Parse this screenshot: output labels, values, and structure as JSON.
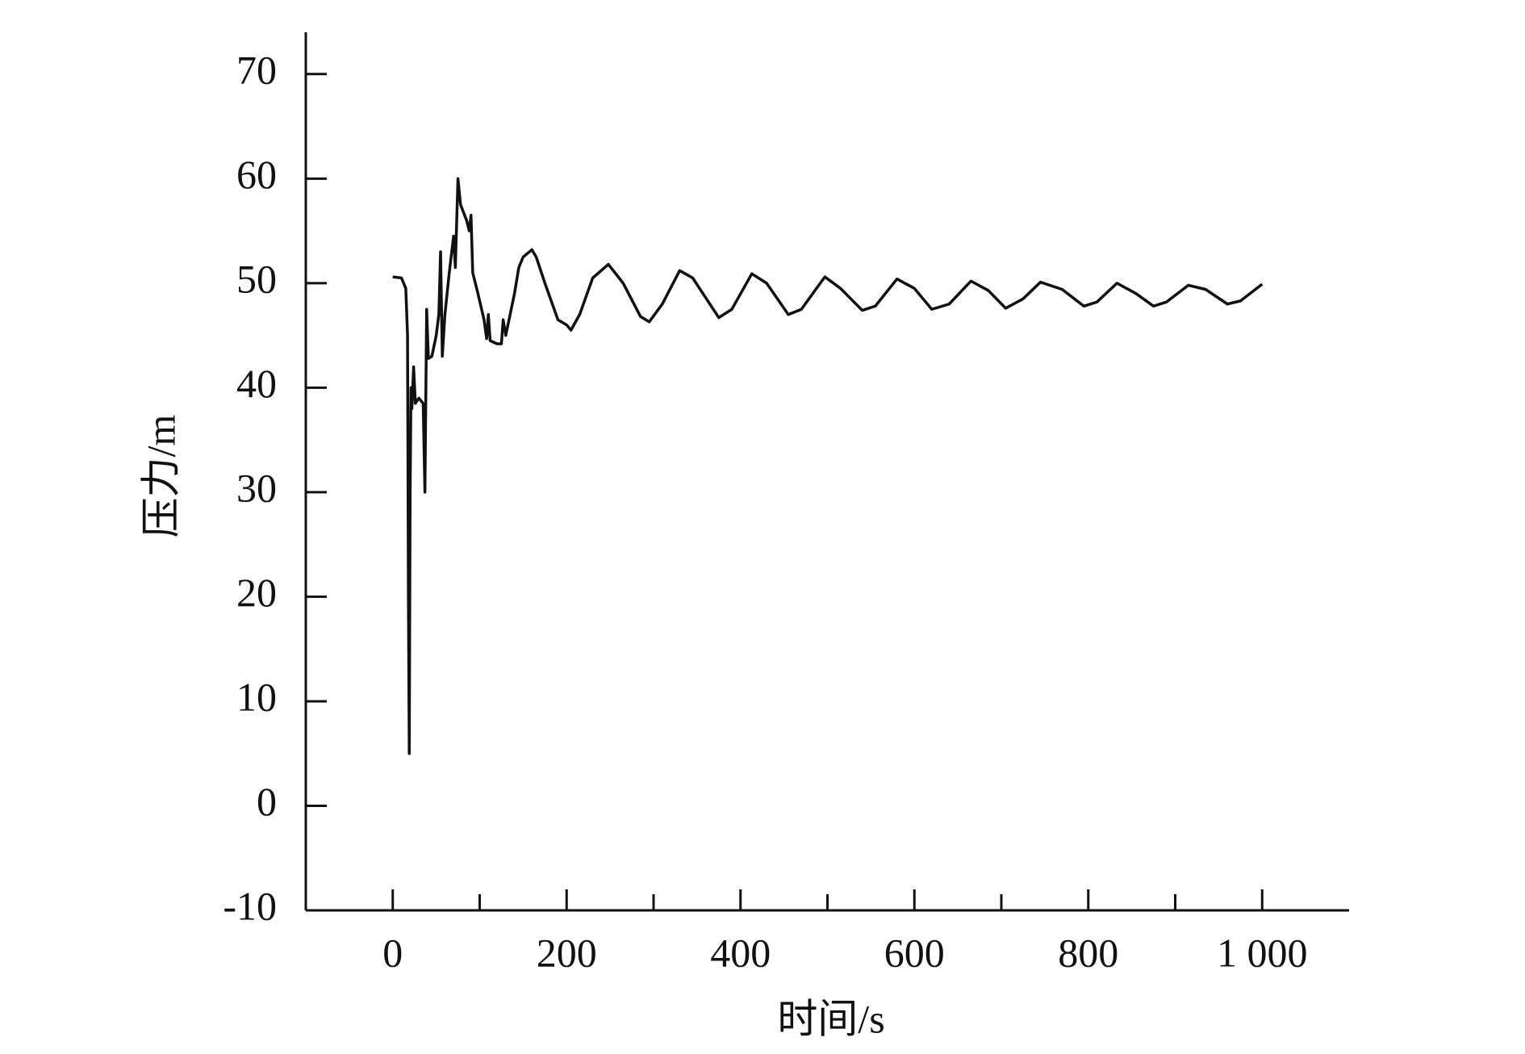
{
  "chart_data": {
    "type": "line",
    "x_label": "时间/s",
    "y_label": "压力/m",
    "xlim": [
      -100,
      1100
    ],
    "ylim": [
      -10,
      74
    ],
    "xticks": [
      0,
      200,
      400,
      600,
      {
        "value": 800,
        "label": "800"
      },
      {
        "value": 1000,
        "label": "1 000"
      }
    ],
    "xminorticks": [
      100,
      300,
      500,
      700,
      900
    ],
    "yticks": [
      -10,
      0,
      10,
      20,
      30,
      40,
      50,
      60,
      70
    ],
    "grid": false,
    "series": [
      {
        "name": "压力",
        "color": "#111111",
        "x": [
          0,
          10,
          15,
          17,
          18,
          19,
          20,
          21,
          22,
          24,
          26,
          30,
          35,
          37,
          39,
          41,
          45,
          50,
          53,
          55,
          57,
          60,
          65,
          70,
          72,
          75,
          78,
          85,
          88,
          90,
          92,
          98,
          105,
          108,
          110,
          112,
          120,
          125,
          127,
          130,
          140,
          145,
          150,
          160,
          165,
          175,
          190,
          200,
          205,
          215,
          230,
          248,
          265,
          285,
          295,
          310,
          330,
          345,
          375,
          390,
          413,
          430,
          455,
          470,
          497,
          515,
          540,
          555,
          580,
          600,
          620,
          640,
          665,
          685,
          705,
          725,
          745,
          770,
          795,
          810,
          833,
          855,
          875,
          890,
          915,
          935,
          960,
          975,
          1000
        ],
        "values": [
          50.6,
          50.5,
          49.5,
          45,
          20,
          5,
          30,
          40,
          38,
          42,
          38.5,
          39,
          38.5,
          30,
          47.5,
          42.8,
          43,
          45,
          47,
          53,
          43,
          47,
          51,
          54.5,
          51.5,
          60,
          57.5,
          56,
          55,
          56.5,
          51,
          49,
          46.5,
          44.7,
          47,
          44.5,
          44.2,
          44.2,
          46.5,
          45,
          49,
          51.5,
          52.5,
          53.2,
          52.5,
          50,
          46.5,
          46,
          45.5,
          47,
          50.5,
          51.8,
          50,
          46.8,
          46.3,
          48,
          51.2,
          50.5,
          46.7,
          47.5,
          50.9,
          50,
          47,
          47.5,
          50.6,
          49.5,
          47.4,
          47.8,
          50.4,
          49.5,
          47.5,
          48,
          50.2,
          49.3,
          47.6,
          48.5,
          50.1,
          49.4,
          47.8,
          48.2,
          50,
          49,
          47.8,
          48.2,
          49.8,
          49.4,
          48,
          48.3,
          49.9
        ]
      }
    ]
  }
}
